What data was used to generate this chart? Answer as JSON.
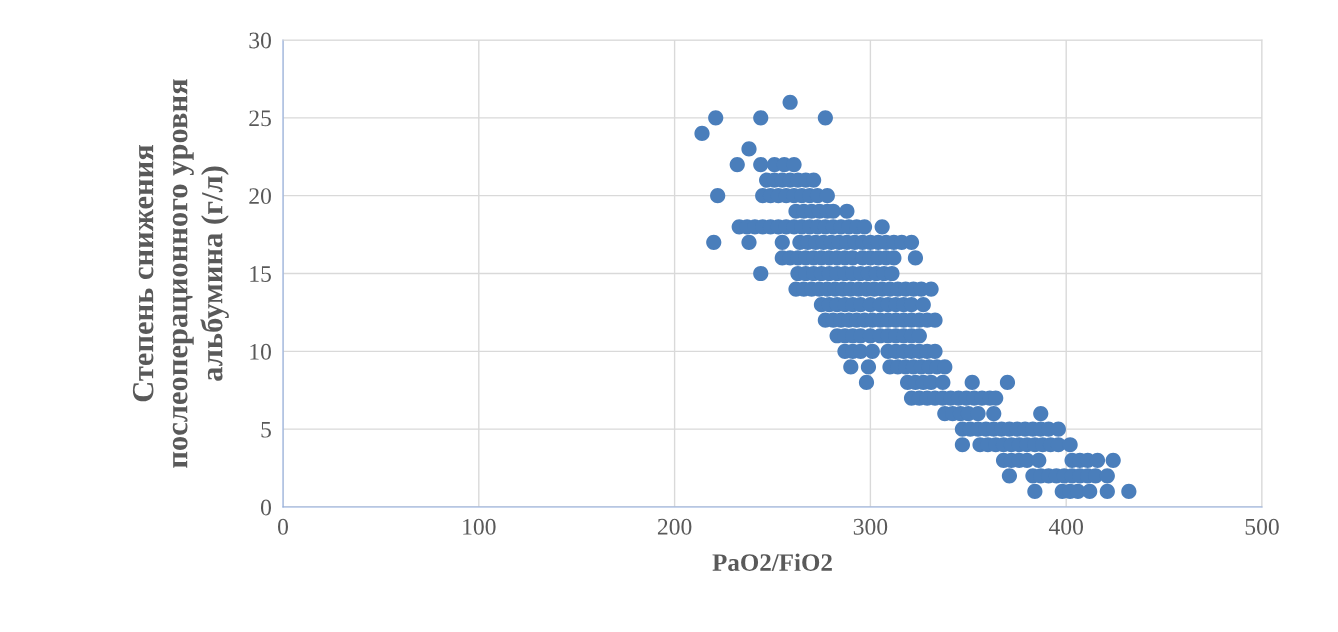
{
  "chart_data": {
    "type": "scatter",
    "xlabel": "PaO2/FiO2",
    "ylabel": "Степень снижения\nпослеоперационного уровня\nальбумина (г/л)",
    "xlim": [
      0,
      500
    ],
    "xticks": [
      0,
      100,
      200,
      300,
      400,
      500
    ],
    "ylim": [
      0,
      30
    ],
    "yticks": [
      0,
      5,
      10,
      15,
      20,
      25,
      30
    ],
    "grid": true,
    "marker": "circle",
    "series": [
      {
        "color": "#4a7ebb",
        "x": [
          259,
          221,
          244,
          277,
          214,
          238,
          232,
          244,
          251,
          256,
          261,
          247,
          251,
          255,
          259,
          263,
          267,
          271,
          222,
          245,
          249,
          253,
          257,
          261,
          265,
          269,
          273,
          278,
          262,
          266,
          270,
          274,
          278,
          281,
          288,
          233,
          237,
          241,
          245,
          249,
          253,
          257,
          261,
          265,
          269,
          273,
          277,
          281,
          285,
          289,
          293,
          297,
          306,
          220,
          238,
          255,
          264,
          268,
          272,
          276,
          280,
          284,
          288,
          292,
          296,
          300,
          304,
          308,
          312,
          316,
          321,
          255,
          259,
          263,
          267,
          271,
          275,
          279,
          283,
          287,
          291,
          296,
          300,
          304,
          308,
          312,
          323,
          244,
          263,
          267,
          271,
          275,
          279,
          283,
          287,
          291,
          295,
          299,
          303,
          307,
          311,
          262,
          266,
          270,
          274,
          278,
          282,
          286,
          290,
          294,
          298,
          302,
          306,
          310,
          314,
          318,
          322,
          326,
          331,
          275,
          279,
          283,
          287,
          291,
          295,
          300,
          305,
          309,
          313,
          317,
          321,
          327,
          277,
          281,
          285,
          289,
          293,
          297,
          301,
          305,
          309,
          313,
          317,
          321,
          325,
          329,
          333,
          283,
          287,
          291,
          295,
          300,
          305,
          309,
          313,
          317,
          321,
          325,
          287,
          291,
          295,
          301,
          309,
          313,
          317,
          321,
          325,
          329,
          333,
          290,
          299,
          310,
          314,
          318,
          322,
          326,
          330,
          334,
          338,
          298,
          319,
          323,
          327,
          331,
          337,
          352,
          370,
          321,
          325,
          329,
          333,
          337,
          341,
          345,
          349,
          353,
          357,
          361,
          364,
          338,
          342,
          346,
          350,
          355,
          363,
          387,
          347,
          351,
          355,
          359,
          363,
          367,
          371,
          375,
          379,
          383,
          387,
          391,
          396,
          347,
          356,
          360,
          364,
          368,
          372,
          376,
          380,
          384,
          388,
          392,
          396,
          402,
          368,
          372,
          376,
          380,
          386,
          403,
          407,
          411,
          416,
          424,
          371,
          383,
          387,
          391,
          395,
          399,
          403,
          407,
          411,
          415,
          421,
          384,
          398,
          402,
          406,
          412,
          421,
          432
        ],
        "values": [
          26,
          25,
          25,
          25,
          24,
          23,
          22,
          22,
          22,
          22,
          22,
          21,
          21,
          21,
          21,
          21,
          21,
          21,
          20,
          20,
          20,
          20,
          20,
          20,
          20,
          20,
          20,
          20,
          19,
          19,
          19,
          19,
          19,
          19,
          19,
          18,
          18,
          18,
          18,
          18,
          18,
          18,
          18,
          18,
          18,
          18,
          18,
          18,
          18,
          18,
          18,
          18,
          18,
          17,
          17,
          17,
          17,
          17,
          17,
          17,
          17,
          17,
          17,
          17,
          17,
          17,
          17,
          17,
          17,
          17,
          17,
          16,
          16,
          16,
          16,
          16,
          16,
          16,
          16,
          16,
          16,
          16,
          16,
          16,
          16,
          16,
          16,
          15,
          15,
          15,
          15,
          15,
          15,
          15,
          15,
          15,
          15,
          15,
          15,
          15,
          15,
          14,
          14,
          14,
          14,
          14,
          14,
          14,
          14,
          14,
          14,
          14,
          14,
          14,
          14,
          14,
          14,
          14,
          14,
          13,
          13,
          13,
          13,
          13,
          13,
          13,
          13,
          13,
          13,
          13,
          13,
          13,
          12,
          12,
          12,
          12,
          12,
          12,
          12,
          12,
          12,
          12,
          12,
          12,
          12,
          12,
          12,
          11,
          11,
          11,
          11,
          11,
          11,
          11,
          11,
          11,
          11,
          11,
          10,
          10,
          10,
          10,
          10,
          10,
          10,
          10,
          10,
          10,
          10,
          9,
          9,
          9,
          9,
          9,
          9,
          9,
          9,
          9,
          9,
          8,
          8,
          8,
          8,
          8,
          8,
          8,
          8,
          7,
          7,
          7,
          7,
          7,
          7,
          7,
          7,
          7,
          7,
          7,
          7,
          6,
          6,
          6,
          6,
          6,
          6,
          6,
          5,
          5,
          5,
          5,
          5,
          5,
          5,
          5,
          5,
          5,
          5,
          5,
          5,
          4,
          4,
          4,
          4,
          4,
          4,
          4,
          4,
          4,
          4,
          4,
          4,
          4,
          3,
          3,
          3,
          3,
          3,
          3,
          3,
          3,
          3,
          3,
          2,
          2,
          2,
          2,
          2,
          2,
          2,
          2,
          2,
          2,
          2,
          1,
          1,
          1,
          1,
          1,
          1,
          1
        ]
      }
    ]
  }
}
